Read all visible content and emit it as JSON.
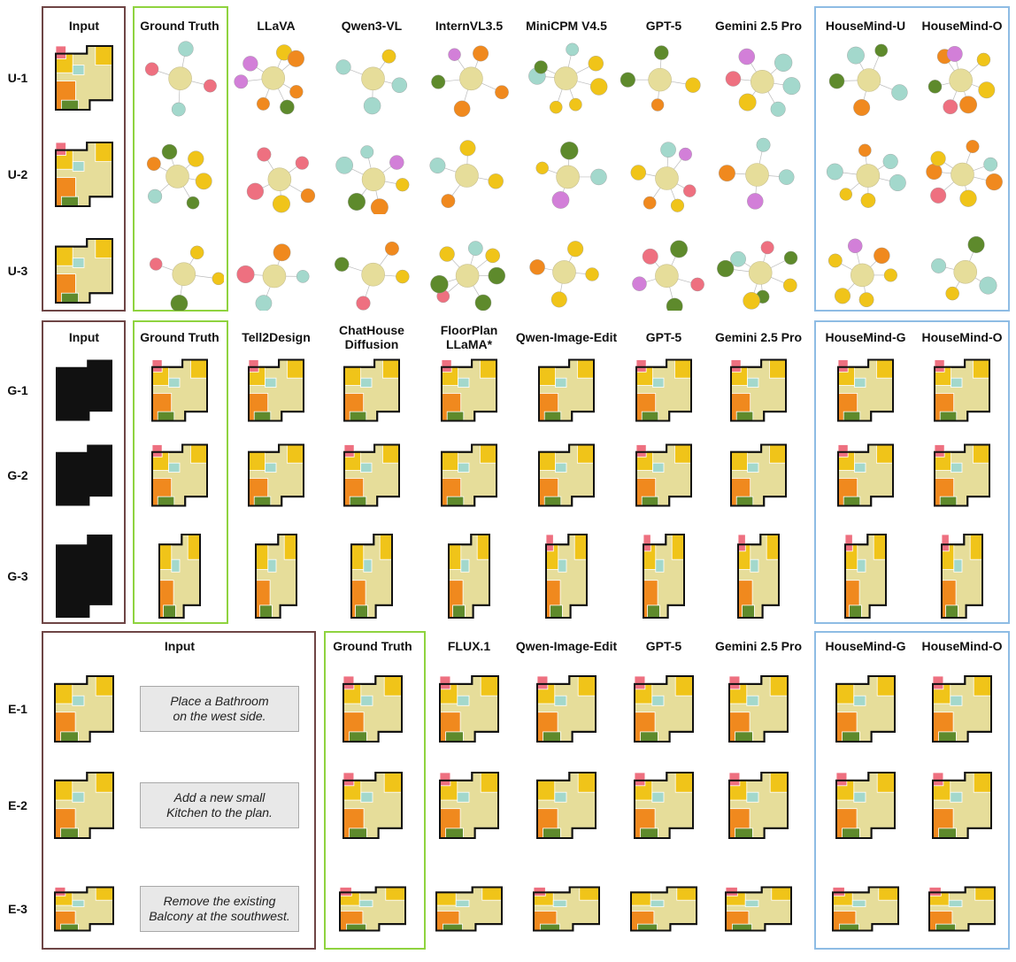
{
  "sections": [
    {
      "id": "understanding",
      "rows": [
        "U-1",
        "U-2",
        "U-3"
      ],
      "columns": [
        "Input",
        "Ground Truth",
        "LLaVA",
        "Qwen3-VL",
        "InternVL3.5",
        "MiniCPM V4.5",
        "GPT-5",
        "Gemini 2.5 Pro",
        "HouseMind-U",
        "HouseMind-O"
      ]
    },
    {
      "id": "generation",
      "rows": [
        "G-1",
        "G-2",
        "G-3"
      ],
      "columns": [
        "Input",
        "Ground Truth",
        "Tell2Design",
        "ChatHouse\nDiffusion",
        "FloorPlan\nLLaMA*",
        "Qwen-Image-Edit",
        "GPT-5",
        "Gemini 2.5 Pro",
        "HouseMind-G",
        "HouseMind-O"
      ]
    },
    {
      "id": "editing",
      "rows": [
        "E-1",
        "E-2",
        "E-3"
      ],
      "columns": [
        "Input",
        "Ground Truth",
        "FLUX.1",
        "Qwen-Image-Edit",
        "GPT-5",
        "Gemini 2.5 Pro",
        "HouseMind-G",
        "HouseMind-O"
      ],
      "instructions": [
        "Place a  Bathroom\non the west side.",
        "Add a new small\nKitchen to the plan.",
        "Remove the existing\nBalcony at the southwest."
      ]
    }
  ],
  "colors": {
    "input_box": "#6e4545",
    "ground_truth_box": "#8fd33f",
    "housemind_box": "#8ebce4",
    "livingroom": "#e6dd9a",
    "bedroom": "#f0c419",
    "masterroom": "#f0891e",
    "bathroom": "#a3d8cc",
    "kitchen": "#ee7080",
    "balcony": "#5e8a2c",
    "storage": "#d27fd8"
  }
}
